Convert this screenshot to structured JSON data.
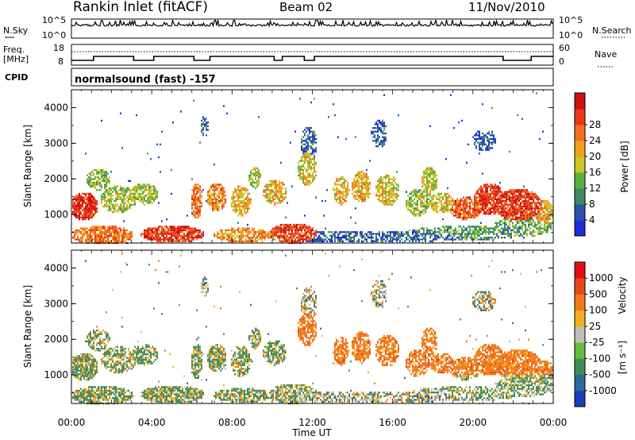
{
  "header": {
    "station": "Rankin Inlet (fitACF)",
    "beam": "Beam 02",
    "date": "11/Nov/2010"
  },
  "noise_panel": {
    "left_label": "N.Sky",
    "left_ticks": [
      "10^5",
      "10^0"
    ],
    "right_label": "N.Search",
    "right_ticks": [
      "10^5",
      "10^0"
    ]
  },
  "freq_panel": {
    "label_line1": "Freq.",
    "label_line2": "[MHz]",
    "left_ticks": [
      "18",
      "8"
    ],
    "right_label": "Nave",
    "right_ticks": [
      "60",
      "0"
    ]
  },
  "cpid_panel": {
    "label": "CPID",
    "mode": "normalsound (fast) -157"
  },
  "x_axis": {
    "label": "Time UT",
    "ticks": [
      "00:00",
      "04:00",
      "08:00",
      "12:00",
      "16:00",
      "20:00",
      "00:00"
    ]
  },
  "chart_data": [
    {
      "type": "heatmap",
      "name": "power",
      "ylabel": "Slant Range [km]",
      "yticks": [
        "1000",
        "2000",
        "3000",
        "4000"
      ],
      "ylim": [
        200,
        4500
      ],
      "xlim": [
        0,
        24
      ],
      "colorbar_label": "Power [dB]",
      "colorbar_ticks": [
        "4",
        "8",
        "12",
        "16",
        "20",
        "24",
        "28"
      ],
      "colors": [
        "#1c2cd8",
        "#2a52a8",
        "#3f8860",
        "#56b040",
        "#c8c820",
        "#f0a020",
        "#f07020",
        "#e83818",
        "#d01010"
      ]
    },
    {
      "type": "heatmap",
      "name": "velocity",
      "ylabel": "Slant Range [km]",
      "yticks": [
        "1000",
        "2000",
        "3000",
        "4000"
      ],
      "ylim": [
        200,
        4500
      ],
      "xlim": [
        0,
        24
      ],
      "colorbar_label": "Velocity",
      "colorbar_unit": "[m s⁻¹]",
      "colorbar_ticks": [
        "1000",
        "500",
        "100",
        "25",
        "-25",
        "-100",
        "-500",
        "-1000"
      ],
      "colors": [
        "#1c3cb8",
        "#2a6a9a",
        "#3f8c5a",
        "#5fbf40",
        "#c0c0b8",
        "#f0b020",
        "#f07a1c",
        "#e84818",
        "#e01010"
      ]
    }
  ]
}
